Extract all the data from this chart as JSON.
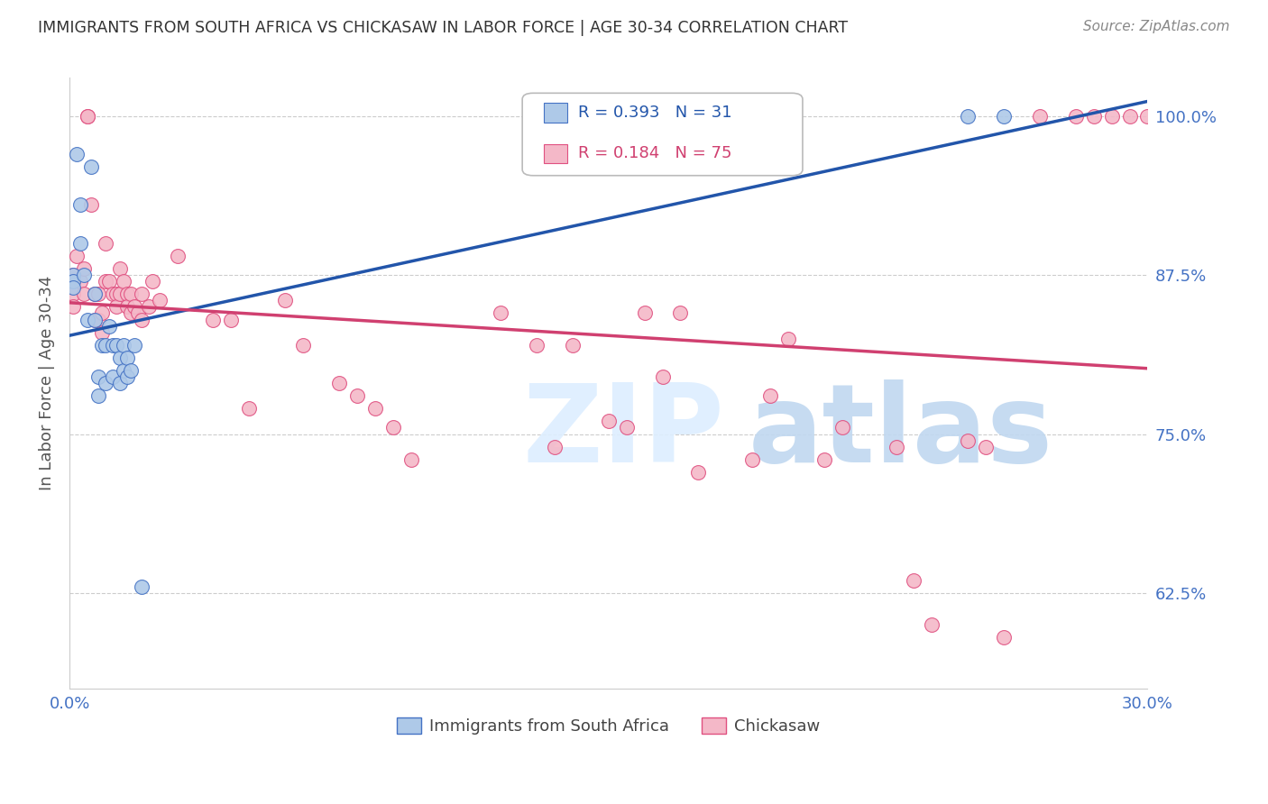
{
  "title": "IMMIGRANTS FROM SOUTH AFRICA VS CHICKASAW IN LABOR FORCE | AGE 30-34 CORRELATION CHART",
  "source_text": "Source: ZipAtlas.com",
  "ylabel": "In Labor Force | Age 30-34",
  "xmin": 0.0,
  "xmax": 0.3,
  "ymin": 0.55,
  "ymax": 1.03,
  "yticks": [
    0.625,
    0.75,
    0.875,
    1.0
  ],
  "ytick_labels": [
    "62.5%",
    "75.0%",
    "87.5%",
    "100.0%"
  ],
  "blue_R": 0.393,
  "blue_N": 31,
  "pink_R": 0.184,
  "pink_N": 75,
  "blue_label": "Immigrants from South Africa",
  "pink_label": "Chickasaw",
  "blue_fill_color": "#aec9e8",
  "pink_fill_color": "#f4b8c8",
  "blue_edge_color": "#4472c4",
  "pink_edge_color": "#e05080",
  "blue_line_color": "#2255aa",
  "pink_line_color": "#d04070",
  "axis_color": "#4472c4",
  "title_color": "#333333",
  "grid_color": "#cccccc",
  "watermark_zip_color": "#ddeeff",
  "watermark_atlas_color": "#b8cce4",
  "blue_x": [
    0.001,
    0.001,
    0.001,
    0.002,
    0.003,
    0.003,
    0.004,
    0.005,
    0.006,
    0.007,
    0.007,
    0.008,
    0.008,
    0.009,
    0.01,
    0.01,
    0.011,
    0.012,
    0.012,
    0.013,
    0.014,
    0.014,
    0.015,
    0.015,
    0.016,
    0.016,
    0.017,
    0.018,
    0.02,
    0.25,
    0.26
  ],
  "blue_y": [
    0.875,
    0.87,
    0.865,
    0.97,
    0.93,
    0.9,
    0.875,
    0.84,
    0.96,
    0.86,
    0.84,
    0.795,
    0.78,
    0.82,
    0.82,
    0.79,
    0.835,
    0.82,
    0.795,
    0.82,
    0.79,
    0.81,
    0.82,
    0.8,
    0.795,
    0.81,
    0.8,
    0.82,
    0.63,
    1.0,
    1.0
  ],
  "pink_x": [
    0.001,
    0.001,
    0.001,
    0.001,
    0.002,
    0.003,
    0.004,
    0.004,
    0.005,
    0.005,
    0.006,
    0.007,
    0.007,
    0.008,
    0.008,
    0.009,
    0.009,
    0.01,
    0.01,
    0.011,
    0.012,
    0.013,
    0.013,
    0.014,
    0.014,
    0.015,
    0.016,
    0.016,
    0.017,
    0.017,
    0.018,
    0.019,
    0.02,
    0.02,
    0.022,
    0.023,
    0.025,
    0.03,
    0.04,
    0.045,
    0.05,
    0.06,
    0.065,
    0.075,
    0.08,
    0.085,
    0.09,
    0.095,
    0.12,
    0.13,
    0.135,
    0.14,
    0.15,
    0.155,
    0.16,
    0.165,
    0.17,
    0.175,
    0.19,
    0.195,
    0.2,
    0.21,
    0.215,
    0.23,
    0.235,
    0.24,
    0.25,
    0.255,
    0.26,
    0.27,
    0.28,
    0.285,
    0.29,
    0.295,
    0.3
  ],
  "pink_y": [
    0.875,
    0.87,
    0.86,
    0.85,
    0.89,
    0.87,
    0.88,
    0.86,
    1.0,
    1.0,
    0.93,
    0.86,
    0.84,
    0.86,
    0.84,
    0.845,
    0.83,
    0.9,
    0.87,
    0.87,
    0.86,
    0.86,
    0.85,
    0.88,
    0.86,
    0.87,
    0.86,
    0.85,
    0.86,
    0.845,
    0.85,
    0.845,
    0.86,
    0.84,
    0.85,
    0.87,
    0.855,
    0.89,
    0.84,
    0.84,
    0.77,
    0.855,
    0.82,
    0.79,
    0.78,
    0.77,
    0.755,
    0.73,
    0.845,
    0.82,
    0.74,
    0.82,
    0.76,
    0.755,
    0.845,
    0.795,
    0.845,
    0.72,
    0.73,
    0.78,
    0.825,
    0.73,
    0.755,
    0.74,
    0.635,
    0.6,
    0.745,
    0.74,
    0.59,
    1.0,
    1.0,
    1.0,
    1.0,
    1.0,
    1.0
  ],
  "figsize": [
    14.06,
    8.92
  ],
  "dpi": 100
}
